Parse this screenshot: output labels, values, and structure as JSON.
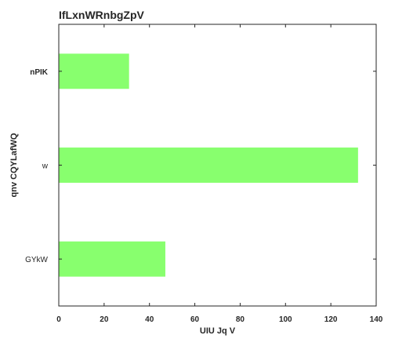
{
  "chart_data": {
    "type": "bar",
    "orientation": "horizontal",
    "title": "IfLxnWRnbgZpV",
    "xlabel": "UIU Jq V",
    "ylabel": "qnv CQYLafWQ",
    "categories": [
      "nPIK",
      "w",
      "GYkW"
    ],
    "category_bold": [
      true,
      false,
      false
    ],
    "values": [
      31,
      132,
      47
    ],
    "xlim": [
      0,
      140
    ],
    "xticks": [
      0,
      20,
      40,
      60,
      80,
      100,
      120,
      140
    ],
    "grid": false,
    "bar_color": "#88ff6e",
    "axis_color": "#262626"
  }
}
